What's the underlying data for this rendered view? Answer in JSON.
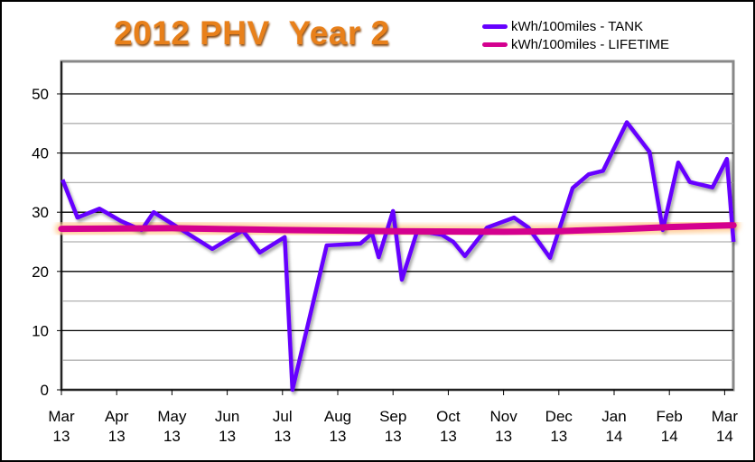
{
  "chart_data": {
    "type": "line",
    "title": "2012 PHV  Year 2",
    "xlabel": "",
    "ylabel": "",
    "ylim": [
      0,
      55
    ],
    "yticks": [
      0,
      10,
      20,
      30,
      40,
      50
    ],
    "xlim": [
      0,
      12.16
    ],
    "x_unit": "months since Mar 2013",
    "xtick_labels": [
      [
        "Mar",
        "13"
      ],
      [
        "Apr",
        "13"
      ],
      [
        "May",
        "13"
      ],
      [
        "Jun",
        "13"
      ],
      [
        "Jul",
        "13"
      ],
      [
        "Aug",
        "13"
      ],
      [
        "Sep",
        "13"
      ],
      [
        "Oct",
        "13"
      ],
      [
        "Nov",
        "13"
      ],
      [
        "Dec",
        "13"
      ],
      [
        "Jan",
        "14"
      ],
      [
        "Feb",
        "14"
      ],
      [
        "Mar",
        "14"
      ]
    ],
    "legend_position": "top-right",
    "series": [
      {
        "name": "kWh/100miles - TANK",
        "color": "#6600ff",
        "x": [
          0.02,
          0.29,
          0.69,
          1.08,
          1.45,
          1.67,
          2.08,
          2.73,
          3.28,
          3.59,
          4.04,
          4.18,
          4.8,
          5.41,
          5.62,
          5.74,
          6.0,
          6.16,
          6.44,
          6.88,
          7.09,
          7.3,
          7.7,
          8.19,
          8.45,
          8.84,
          9.25,
          9.54,
          9.8,
          10.23,
          10.64,
          10.88,
          11.16,
          11.37,
          11.78,
          12.04,
          12.16
        ],
        "y": [
          35.5,
          29.1,
          30.6,
          28.5,
          27.0,
          30.0,
          27.6,
          23.8,
          26.9,
          23.2,
          25.8,
          0,
          24.4,
          24.7,
          26.4,
          22.4,
          30.2,
          18.6,
          26.9,
          26.2,
          25.0,
          22.6,
          27.4,
          29.1,
          27.4,
          22.3,
          34.1,
          36.4,
          37.0,
          45.2,
          40.2,
          27.0,
          38.4,
          35.1,
          34.2,
          39.0,
          25.0
        ]
      },
      {
        "name": "kWh/100miles - LIFETIME",
        "color": "#d4008f",
        "x": [
          0,
          2,
          4,
          6,
          8,
          9,
          10,
          11,
          12.16
        ],
        "y": [
          27.2,
          27.3,
          27.0,
          26.8,
          26.7,
          26.8,
          27.1,
          27.5,
          27.8
        ]
      }
    ]
  }
}
